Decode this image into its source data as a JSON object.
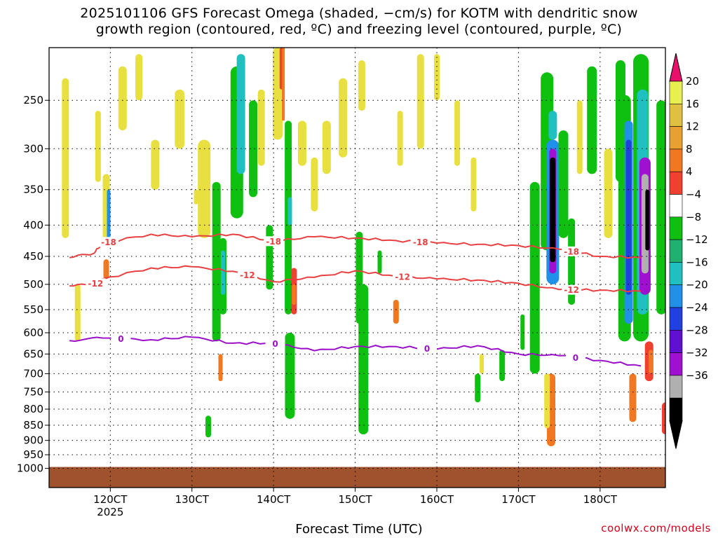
{
  "title_lines": [
    "2025101106 GFS Forecast Omega (shaded, −cm/s) for KOTM with dendritic snow",
    "growth region (contoured, red, ºC) and freezing level (contoured, purple, ºC)"
  ],
  "x_title": "Forecast Time (UTC)",
  "credit": "coolwx.com/models",
  "chart_data": {
    "type": "time-height cross section",
    "x_ticks": [
      "120CT",
      "130CT",
      "140CT",
      "150CT",
      "160CT",
      "170CT",
      "180CT"
    ],
    "x_sub_label": "2025",
    "y_ticks": [
      250,
      300,
      350,
      400,
      450,
      500,
      550,
      600,
      650,
      700,
      750,
      800,
      850,
      900,
      950,
      1000
    ],
    "y_scale": "log-pressure (hPa)",
    "colorbar": {
      "labels": [
        "20",
        "16",
        "12",
        "8",
        "4",
        "−4",
        "−8",
        "−12",
        "−16",
        "−20",
        "−24",
        "−28",
        "−32",
        "−36"
      ],
      "colors": [
        "#e8f050",
        "#e0c040",
        "#e8a030",
        "#f07820",
        "#f04030",
        "#ffffff",
        "#10c010",
        "#20b070",
        "#20c0c0",
        "#2090e8",
        "#2040e0",
        "#6010d0",
        "#a010d0",
        "#b0b0b0",
        "#000000"
      ],
      "top_arrow": "#e8106a",
      "bottom_arrow": "#000000"
    },
    "contours": {
      "dendritic": {
        "color": "#e84040",
        "labels": [
          "-18",
          "-12"
        ],
        "series": [
          {
            "level": "-18",
            "points": [
              [
                11.5,
                452
              ],
              [
                11.8,
                445
              ],
              [
                11.9,
                428
              ],
              [
                12.5,
                414
              ],
              [
                13,
                418
              ],
              [
                13.5,
                414
              ],
              [
                14,
                425
              ],
              [
                14.5,
                418
              ],
              [
                15,
                420
              ],
              [
                15.5,
                424
              ],
              [
                16,
                428
              ],
              [
                16.5,
                430
              ],
              [
                17,
                432
              ],
              [
                17.5,
                438
              ],
              [
                18,
                450
              ],
              [
                18.5,
                452
              ]
            ]
          },
          {
            "level": "-12",
            "points": [
              [
                11.5,
                503
              ],
              [
                11.8,
                500
              ],
              [
                11.9,
                490
              ],
              [
                12.5,
                470
              ],
              [
                13,
                468
              ],
              [
                13.5,
                476
              ],
              [
                14,
                495
              ],
              [
                14.5,
                487
              ],
              [
                15,
                475
              ],
              [
                15.5,
                485
              ],
              [
                16,
                490
              ],
              [
                16.5,
                492
              ],
              [
                17,
                498
              ],
              [
                17.5,
                510
              ],
              [
                18,
                511
              ],
              [
                18.5,
                513
              ]
            ]
          }
        ]
      },
      "freezing_level": {
        "color": "#9a10c8",
        "labels": [
          "0"
        ],
        "series": [
          {
            "level": "0",
            "points": [
              [
                11.5,
                618
              ],
              [
                11.9,
                612
              ],
              [
                12.5,
                616
              ],
              [
                13,
                610
              ],
              [
                13.5,
                624
              ],
              [
                14,
                624
              ],
              [
                14.5,
                642
              ],
              [
                15,
                632
              ],
              [
                15.5,
                632
              ],
              [
                16,
                638
              ],
              [
                16.5,
                630
              ],
              [
                17,
                650
              ],
              [
                17.5,
                654
              ],
              [
                18,
                666
              ],
              [
                18.5,
                680
              ]
            ]
          }
        ]
      }
    },
    "surface_pressure_hpa": 1000
  }
}
